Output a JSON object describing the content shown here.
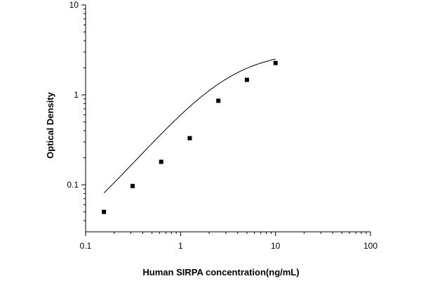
{
  "chart_data": {
    "type": "scatter",
    "title": "",
    "xlabel": "Human SIRPA concentration(ng/mL)",
    "ylabel": "Optical Density",
    "x_scale": "log",
    "y_scale": "log",
    "xlim": [
      0.1,
      100
    ],
    "ylim": [
      0.03,
      10
    ],
    "x_ticks": [
      0.1,
      1,
      10,
      100
    ],
    "x_tick_labels": [
      "0.1",
      "1",
      "10",
      "100"
    ],
    "y_ticks": [
      0.1,
      1,
      10
    ],
    "y_tick_labels": [
      "0.1",
      "1",
      "10"
    ],
    "grid": false,
    "legend": "none",
    "series": [
      {
        "x": [
          0.156,
          0.313,
          0.625,
          1.25,
          2.5,
          5,
          10
        ],
        "y": [
          0.05,
          0.097,
          0.18,
          0.33,
          0.86,
          1.47,
          2.26
        ],
        "marker": "square",
        "color": "#000000",
        "fit": "4-parameter logistic curve"
      }
    ]
  }
}
